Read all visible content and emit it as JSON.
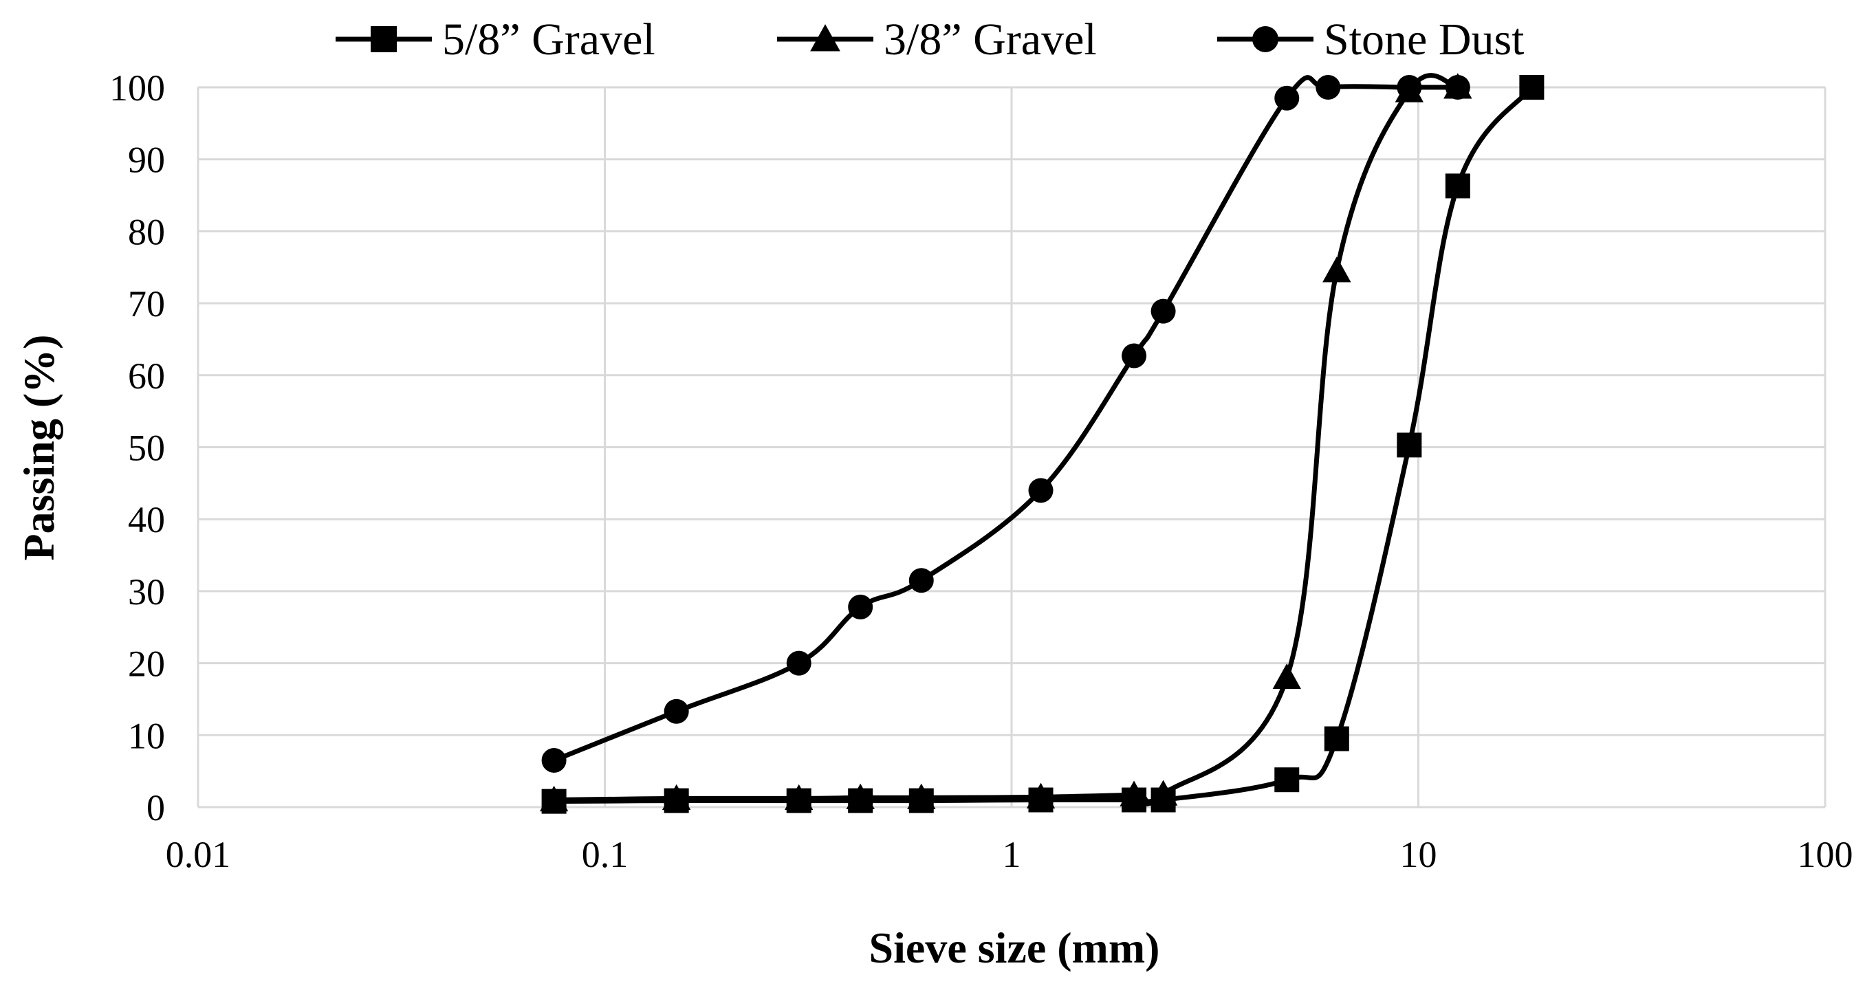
{
  "chart_data": {
    "type": "line",
    "xscale": "log",
    "xlabel": "Sieve size (mm)",
    "ylabel": "Passing (%)",
    "xlim": [
      0.01,
      100
    ],
    "ylim": [
      0,
      100
    ],
    "grid": true,
    "legend_position": "top",
    "x_ticks": [
      0.01,
      0.1,
      1,
      10,
      100
    ],
    "x_tick_labels": [
      "0.01",
      "0.1",
      "1",
      "10",
      "100"
    ],
    "y_ticks": [
      0,
      10,
      20,
      30,
      40,
      50,
      60,
      70,
      80,
      90,
      100
    ],
    "y_tick_labels": [
      "0",
      "10",
      "20",
      "30",
      "40",
      "50",
      "60",
      "70",
      "80",
      "90",
      "100"
    ],
    "series": [
      {
        "name": "5/8” Gravel",
        "marker": "square",
        "color": "#000000",
        "points": [
          [
            0.075,
            0.8
          ],
          [
            0.15,
            0.9
          ],
          [
            0.3,
            0.9
          ],
          [
            0.425,
            0.9
          ],
          [
            0.6,
            0.9
          ],
          [
            1.18,
            1.0
          ],
          [
            2.0,
            1.0
          ],
          [
            2.36,
            1.0
          ],
          [
            4.75,
            3.8
          ],
          [
            6.3,
            9.5
          ],
          [
            9.5,
            50.3
          ],
          [
            12.5,
            86.3
          ],
          [
            19.0,
            100
          ]
        ]
      },
      {
        "name": "3/8” Gravel",
        "marker": "triangle",
        "color": "#000000",
        "points": [
          [
            0.075,
            1.0
          ],
          [
            0.15,
            1.2
          ],
          [
            0.3,
            1.2
          ],
          [
            0.425,
            1.3
          ],
          [
            0.6,
            1.3
          ],
          [
            1.18,
            1.4
          ],
          [
            2.0,
            1.7
          ],
          [
            2.36,
            1.8
          ],
          [
            4.75,
            18.0
          ],
          [
            6.3,
            74.5
          ],
          [
            9.5,
            99.5
          ],
          [
            12.5,
            100
          ]
        ]
      },
      {
        "name": "Stone Dust",
        "marker": "circle",
        "color": "#000000",
        "points": [
          [
            0.075,
            6.5
          ],
          [
            0.15,
            13.3
          ],
          [
            0.3,
            20.0
          ],
          [
            0.425,
            27.8
          ],
          [
            0.6,
            31.5
          ],
          [
            1.18,
            44.0
          ],
          [
            2.0,
            62.7
          ],
          [
            2.36,
            68.9
          ],
          [
            4.75,
            98.5
          ],
          [
            6.0,
            100
          ],
          [
            9.5,
            100
          ],
          [
            12.5,
            100
          ]
        ]
      }
    ]
  }
}
